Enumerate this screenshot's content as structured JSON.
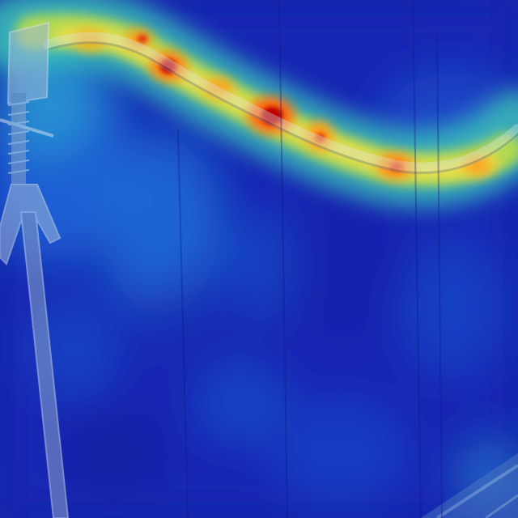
{
  "image": {
    "kind": "attention-heatmap-overlay",
    "colormap": "jet",
    "colors": {
      "background": "#101c8c",
      "low": "#1a2ad0",
      "mid_low": "#1e7fe0",
      "mid": "#38c8c8",
      "mid_high": "#e8e040",
      "high": "#ff9a10",
      "peak": "#c40a0a",
      "object_tint": "#9fb6d8"
    }
  }
}
